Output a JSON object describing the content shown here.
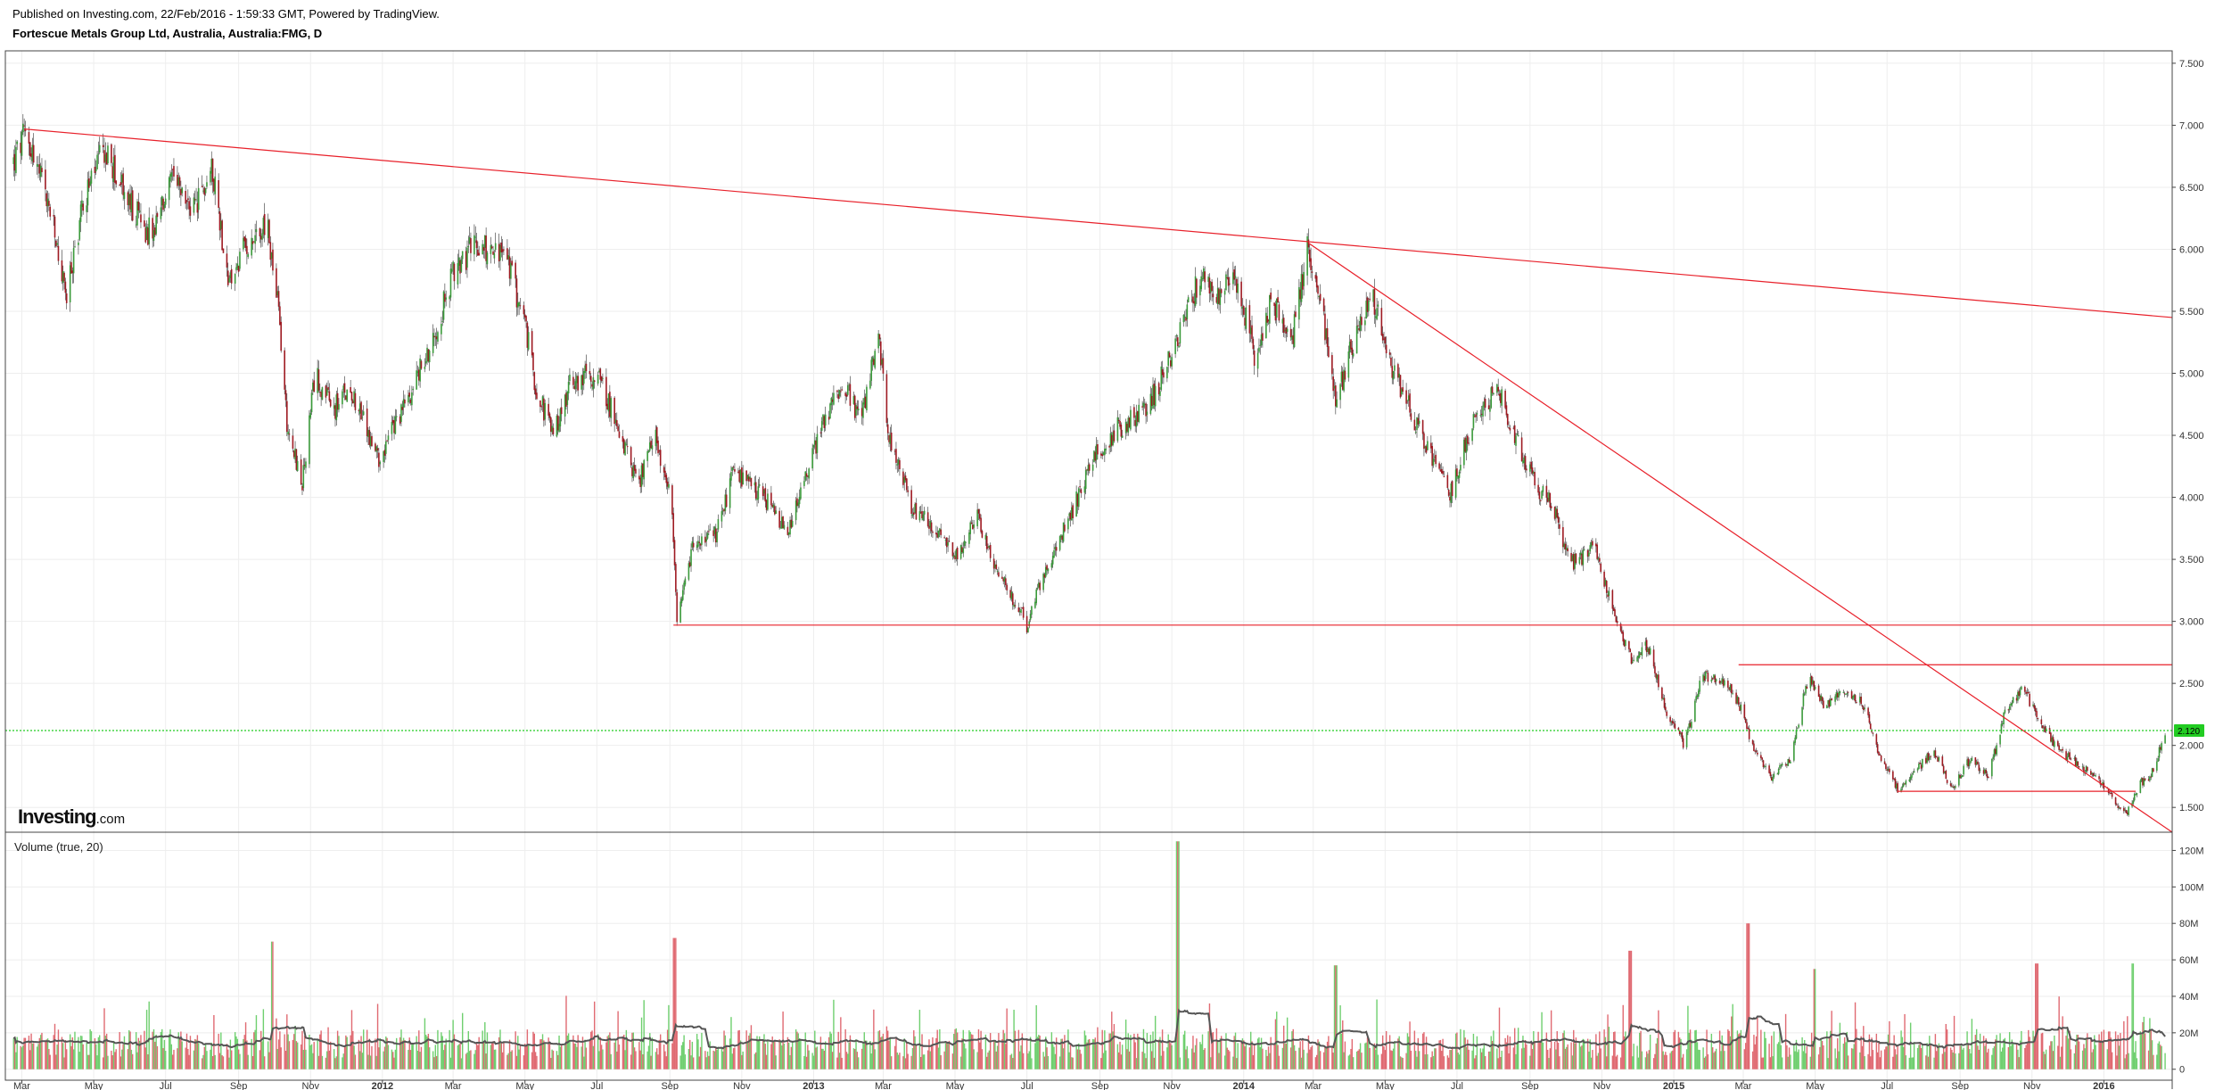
{
  "header": {
    "published": "Published on Investing.com, 22/Feb/2016 - 1:59:33 GMT, Powered by TradingView.",
    "symbol": "Fortescue Metals Group Ltd, Australia, Australia:FMG, D"
  },
  "logo": {
    "brand": "Investing",
    "suffix": ".com"
  },
  "colors": {
    "up": "#3a9a3a",
    "down": "#9e1a22",
    "vol_up": "#6fcf6f",
    "vol_down": "#e06a72",
    "trendline": "#e8202a",
    "current_price": "#22cc22",
    "volume_ma": "#555555",
    "grid": "#eeeeee"
  },
  "chart_data": [
    {
      "type": "candlestick",
      "title": "Fortescue Metals Group Ltd, Australia, Australia:FMG, D",
      "ylim": [
        1.3,
        7.6
      ],
      "y_ticks": [
        "7.500",
        "7.000",
        "6.500",
        "6.000",
        "5.500",
        "5.000",
        "4.500",
        "4.000",
        "3.500",
        "3.000",
        "2.500",
        "2.000",
        "1.500"
      ],
      "x_tick_labels": [
        "Mar",
        "May",
        "Jul",
        "Sep",
        "Nov",
        "2012",
        "Mar",
        "May",
        "Jul",
        "Sep",
        "Nov",
        "2013",
        "Mar",
        "May",
        "Jul",
        "Sep",
        "Nov",
        "2014",
        "Mar",
        "May",
        "Jul",
        "Sep",
        "Nov",
        "2015",
        "Mar",
        "May",
        "Jul",
        "Sep",
        "Nov",
        "2016"
      ],
      "x_tick_dates": [
        "2011-03-01",
        "2011-05-01",
        "2011-07-01",
        "2011-09-01",
        "2011-11-01",
        "2012-01-01",
        "2012-03-01",
        "2012-05-01",
        "2012-07-01",
        "2012-09-01",
        "2012-11-01",
        "2013-01-01",
        "2013-03-01",
        "2013-05-01",
        "2013-07-01",
        "2013-09-01",
        "2013-11-01",
        "2014-01-01",
        "2014-03-01",
        "2014-05-01",
        "2014-07-01",
        "2014-09-01",
        "2014-11-01",
        "2015-01-01",
        "2015-03-01",
        "2015-05-01",
        "2015-07-01",
        "2015-09-01",
        "2015-11-01",
        "2016-01-01"
      ],
      "bold_ticks": [
        "2012",
        "2013",
        "2014",
        "2015",
        "2016"
      ],
      "current_price": {
        "label": "2.120",
        "value": 2.12
      },
      "price_path": [
        [
          "2011-02-22",
          6.7
        ],
        [
          "2011-03-05",
          6.95
        ],
        [
          "2011-03-25",
          6.3
        ],
        [
          "2011-04-08",
          5.6
        ],
        [
          "2011-04-22",
          6.4
        ],
        [
          "2011-05-10",
          6.8
        ],
        [
          "2011-06-01",
          6.35
        ],
        [
          "2011-06-20",
          6.1
        ],
        [
          "2011-07-05",
          6.55
        ],
        [
          "2011-07-25",
          6.3
        ],
        [
          "2011-08-10",
          6.65
        ],
        [
          "2011-08-24",
          5.7
        ],
        [
          "2011-09-10",
          6.1
        ],
        [
          "2011-09-25",
          6.2
        ],
        [
          "2011-10-05",
          5.5
        ],
        [
          "2011-10-12",
          4.6
        ],
        [
          "2011-10-25",
          4.1
        ],
        [
          "2011-11-05",
          5.0
        ],
        [
          "2011-11-20",
          4.7
        ],
        [
          "2011-12-05",
          4.9
        ],
        [
          "2011-12-28",
          4.3
        ],
        [
          "2012-01-20",
          4.75
        ],
        [
          "2012-02-10",
          5.2
        ],
        [
          "2012-03-01",
          5.8
        ],
        [
          "2012-03-20",
          6.05
        ],
        [
          "2012-04-15",
          5.95
        ],
        [
          "2012-05-01",
          5.4
        ],
        [
          "2012-05-10",
          4.9
        ],
        [
          "2012-05-25",
          4.5
        ],
        [
          "2012-06-10",
          4.95
        ],
        [
          "2012-07-01",
          5.0
        ],
        [
          "2012-07-20",
          4.55
        ],
        [
          "2012-08-05",
          4.1
        ],
        [
          "2012-08-20",
          4.5
        ],
        [
          "2012-09-03",
          3.9
        ],
        [
          "2012-09-07",
          2.95
        ],
        [
          "2012-09-20",
          3.6
        ],
        [
          "2012-10-10",
          3.7
        ],
        [
          "2012-10-25",
          4.2
        ],
        [
          "2012-11-20",
          4.0
        ],
        [
          "2012-12-10",
          3.7
        ],
        [
          "2013-01-05",
          4.5
        ],
        [
          "2013-01-25",
          4.95
        ],
        [
          "2013-02-10",
          4.6
        ],
        [
          "2013-02-25",
          5.3
        ],
        [
          "2013-03-05",
          4.55
        ],
        [
          "2013-03-25",
          3.9
        ],
        [
          "2013-04-15",
          3.75
        ],
        [
          "2013-05-01",
          3.5
        ],
        [
          "2013-05-20",
          3.85
        ],
        [
          "2013-06-05",
          3.4
        ],
        [
          "2013-06-25",
          3.1
        ],
        [
          "2013-07-01",
          2.95
        ],
        [
          "2013-07-15",
          3.4
        ],
        [
          "2013-08-05",
          3.8
        ],
        [
          "2013-08-25",
          4.3
        ],
        [
          "2013-09-15",
          4.55
        ],
        [
          "2013-10-10",
          4.7
        ],
        [
          "2013-10-25",
          5.0
        ],
        [
          "2013-11-10",
          5.4
        ],
        [
          "2013-11-25",
          5.8
        ],
        [
          "2013-12-10",
          5.6
        ],
        [
          "2013-12-25",
          5.8
        ],
        [
          "2014-01-10",
          5.15
        ],
        [
          "2014-01-25",
          5.6
        ],
        [
          "2014-02-10",
          5.2
        ],
        [
          "2014-02-25",
          6.05
        ],
        [
          "2014-03-10",
          5.4
        ],
        [
          "2014-03-20",
          4.75
        ],
        [
          "2014-04-05",
          5.3
        ],
        [
          "2014-04-20",
          5.65
        ],
        [
          "2014-05-05",
          5.1
        ],
        [
          "2014-05-25",
          4.65
        ],
        [
          "2014-06-10",
          4.3
        ],
        [
          "2014-06-25",
          4.0
        ],
        [
          "2014-07-10",
          4.5
        ],
        [
          "2014-07-25",
          4.75
        ],
        [
          "2014-08-05",
          4.85
        ],
        [
          "2014-08-20",
          4.5
        ],
        [
          "2014-09-05",
          4.1
        ],
        [
          "2014-09-20",
          3.95
        ],
        [
          "2014-10-05",
          3.45
        ],
        [
          "2014-10-25",
          3.6
        ],
        [
          "2014-11-10",
          3.1
        ],
        [
          "2014-11-25",
          2.7
        ],
        [
          "2014-12-10",
          2.8
        ],
        [
          "2014-12-25",
          2.3
        ],
        [
          "2015-01-10",
          2.0
        ],
        [
          "2015-01-25",
          2.55
        ],
        [
          "2015-02-10",
          2.55
        ],
        [
          "2015-02-25",
          2.35
        ],
        [
          "2015-03-10",
          1.95
        ],
        [
          "2015-03-25",
          1.75
        ],
        [
          "2015-04-10",
          1.9
        ],
        [
          "2015-04-25",
          2.55
        ],
        [
          "2015-05-10",
          2.3
        ],
        [
          "2015-05-25",
          2.45
        ],
        [
          "2015-06-10",
          2.35
        ],
        [
          "2015-06-25",
          1.9
        ],
        [
          "2015-07-10",
          1.65
        ],
        [
          "2015-07-25",
          1.8
        ],
        [
          "2015-08-10",
          1.95
        ],
        [
          "2015-08-25",
          1.65
        ],
        [
          "2015-09-10",
          1.9
        ],
        [
          "2015-09-25",
          1.75
        ],
        [
          "2015-10-10",
          2.3
        ],
        [
          "2015-10-25",
          2.45
        ],
        [
          "2015-11-10",
          2.15
        ],
        [
          "2015-11-25",
          1.95
        ],
        [
          "2015-12-10",
          1.85
        ],
        [
          "2015-12-25",
          1.75
        ],
        [
          "2016-01-10",
          1.55
        ],
        [
          "2016-01-20",
          1.45
        ],
        [
          "2016-02-01",
          1.7
        ],
        [
          "2016-02-10",
          1.75
        ],
        [
          "2016-02-22",
          2.12
        ]
      ],
      "trendlines": [
        {
          "from": [
            "2011-03-03",
            6.97
          ],
          "to": [
            "2016-02-28",
            5.45
          ]
        },
        {
          "from": [
            "2014-02-25",
            6.05
          ],
          "to": [
            "2016-02-28",
            1.3
          ]
        },
        {
          "from": [
            "2012-09-04",
            2.97
          ],
          "to": [
            "2016-02-28",
            2.97
          ]
        },
        {
          "from": [
            "2015-02-25",
            2.65
          ],
          "to": [
            "2016-02-28",
            2.65
          ]
        },
        {
          "from": [
            "2015-07-10",
            1.63
          ],
          "to": [
            "2016-01-28",
            1.63
          ]
        }
      ]
    },
    {
      "type": "bar",
      "title": "Volume (true, 20)",
      "ylim": [
        -6,
        130
      ],
      "y_ticks": [
        "120M",
        "100M",
        "80M",
        "60M",
        "40M",
        "20M",
        "0"
      ],
      "moving_average_length": 20,
      "spikes": [
        [
          "2011-09-30",
          70
        ],
        [
          "2012-09-05",
          72
        ],
        [
          "2013-11-06",
          125
        ],
        [
          "2014-03-20",
          57
        ],
        [
          "2014-11-25",
          65
        ],
        [
          "2015-03-05",
          80
        ],
        [
          "2015-05-01",
          55
        ],
        [
          "2015-11-05",
          58
        ],
        [
          "2016-01-25",
          58
        ]
      ]
    }
  ]
}
